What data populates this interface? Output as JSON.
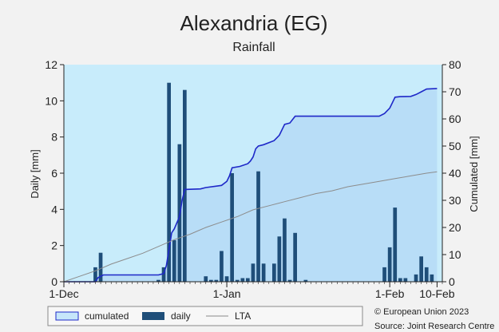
{
  "chart_data": {
    "type": "bar+line",
    "title": "Alexandria (EG)",
    "subtitle": "Rainfall",
    "ylabel": "Daily [mm]",
    "y2label": "Cumulated [mm]",
    "ylim": [
      0,
      12
    ],
    "y2lim": [
      0,
      80
    ],
    "yticks": [
      0,
      2,
      4,
      6,
      8,
      10,
      12
    ],
    "y2ticks": [
      0,
      10,
      20,
      30,
      40,
      50,
      60,
      70,
      80
    ],
    "x_domain_days": [
      0,
      72
    ],
    "xticks": [
      {
        "label": "1-Dec",
        "day": 0
      },
      {
        "label": "1-Jan",
        "day": 31
      },
      {
        "label": "1-Feb",
        "day": 62
      },
      {
        "label": "10-Feb",
        "day": 71
      }
    ],
    "daily": [
      {
        "day": 6,
        "value": 0.8
      },
      {
        "day": 7,
        "value": 1.6
      },
      {
        "day": 18,
        "value": 0.1
      },
      {
        "day": 19,
        "value": 0.8
      },
      {
        "day": 20,
        "value": 11.0
      },
      {
        "day": 21,
        "value": 2.3
      },
      {
        "day": 22,
        "value": 7.6
      },
      {
        "day": 23,
        "value": 10.6
      },
      {
        "day": 27,
        "value": 0.3
      },
      {
        "day": 28,
        "value": 0.1
      },
      {
        "day": 29,
        "value": 0.1
      },
      {
        "day": 30,
        "value": 1.7
      },
      {
        "day": 31,
        "value": 0.3
      },
      {
        "day": 32,
        "value": 6.0
      },
      {
        "day": 33,
        "value": 0.1
      },
      {
        "day": 34,
        "value": 0.2
      },
      {
        "day": 35,
        "value": 0.2
      },
      {
        "day": 36,
        "value": 1.0
      },
      {
        "day": 37,
        "value": 6.1
      },
      {
        "day": 38,
        "value": 1.0
      },
      {
        "day": 40,
        "value": 1.0
      },
      {
        "day": 41,
        "value": 2.5
      },
      {
        "day": 42,
        "value": 3.5
      },
      {
        "day": 43,
        "value": 0.1
      },
      {
        "day": 44,
        "value": 2.7
      },
      {
        "day": 46,
        "value": 0.1
      },
      {
        "day": 61,
        "value": 0.8
      },
      {
        "day": 62,
        "value": 1.9
      },
      {
        "day": 63,
        "value": 4.1
      },
      {
        "day": 64,
        "value": 0.2
      },
      {
        "day": 65,
        "value": 0.2
      },
      {
        "day": 67,
        "value": 0.4
      },
      {
        "day": 68,
        "value": 1.4
      },
      {
        "day": 69,
        "value": 0.8
      },
      {
        "day": 70,
        "value": 0.4
      }
    ],
    "cumulated": [
      [
        0,
        0
      ],
      [
        6,
        0
      ],
      [
        6.5,
        1.5
      ],
      [
        7.5,
        2.5
      ],
      [
        18,
        2.5
      ],
      [
        19,
        3.0
      ],
      [
        19.5,
        6.0
      ],
      [
        20,
        12.0
      ],
      [
        20.5,
        18.0
      ],
      [
        21,
        19.5
      ],
      [
        22,
        24.0
      ],
      [
        22.5,
        30.0
      ],
      [
        23,
        34.0
      ],
      [
        26,
        34.2
      ],
      [
        27,
        34.7
      ],
      [
        30,
        35.5
      ],
      [
        31,
        37.0
      ],
      [
        31.5,
        39.0
      ],
      [
        32,
        42.0
      ],
      [
        33.5,
        42.5
      ],
      [
        35,
        43.5
      ],
      [
        35.5,
        44.5
      ],
      [
        36,
        46.0
      ],
      [
        36.5,
        49.0
      ],
      [
        37,
        50.0
      ],
      [
        38,
        50.5
      ],
      [
        40,
        52.0
      ],
      [
        41,
        54.0
      ],
      [
        42,
        58.0
      ],
      [
        43,
        58.5
      ],
      [
        44,
        61.0
      ],
      [
        46,
        61.0
      ],
      [
        60,
        61.0
      ],
      [
        61,
        62.0
      ],
      [
        62,
        64.0
      ],
      [
        62.5,
        66.0
      ],
      [
        63,
        68.0
      ],
      [
        64,
        68.2
      ],
      [
        66,
        68.3
      ],
      [
        67,
        69.0
      ],
      [
        68,
        70.0
      ],
      [
        69,
        71.0
      ],
      [
        71,
        71.2
      ]
    ],
    "lta": [
      [
        0,
        0
      ],
      [
        3,
        2.0
      ],
      [
        6,
        4.0
      ],
      [
        9,
        6.5
      ],
      [
        12,
        8.5
      ],
      [
        15,
        10.5
      ],
      [
        18,
        13.0
      ],
      [
        21,
        15.5
      ],
      [
        24,
        17.5
      ],
      [
        27,
        20.0
      ],
      [
        30,
        22.0
      ],
      [
        33,
        24.0
      ],
      [
        36,
        26.5
      ],
      [
        39,
        28.0
      ],
      [
        42,
        29.5
      ],
      [
        45,
        31.0
      ],
      [
        48,
        32.5
      ],
      [
        51,
        33.5
      ],
      [
        54,
        35.0
      ],
      [
        57,
        36.0
      ],
      [
        60,
        37.0
      ],
      [
        63,
        38.0
      ],
      [
        66,
        39.0
      ],
      [
        69,
        40.0
      ],
      [
        71,
        40.5
      ]
    ],
    "legend": {
      "position": "bottom-left",
      "items": [
        {
          "label": "cumulated",
          "kind": "area",
          "color": "#c6e6fa",
          "edge": "#1e28c8"
        },
        {
          "label": "daily",
          "kind": "bar",
          "color": "#1f4e79"
        },
        {
          "label": "LTA",
          "kind": "line",
          "color": "#888888"
        }
      ]
    },
    "credits": [
      "© European Union 2023",
      "Source: Joint Research Centre"
    ],
    "colors": {
      "plot_background": "#c8ecfb",
      "cumulated_fill": "#b6dcf6",
      "cumulated_line": "#1e28c8",
      "bar": "#1f4e79",
      "lta_line": "#8c8c8c"
    }
  }
}
